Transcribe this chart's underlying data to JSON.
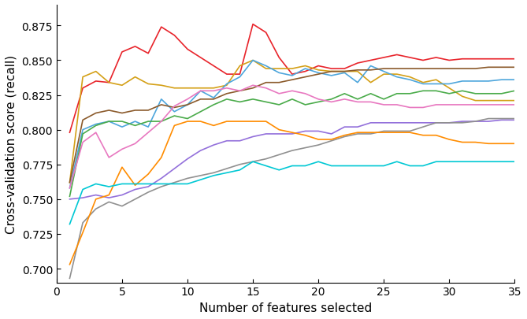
{
  "xlabel": "Number of features selected",
  "ylabel": "Cross-validation score (recall)",
  "xlim": [
    1,
    35
  ],
  "ylim": [
    0.69,
    0.89
  ],
  "yticks": [
    0.7,
    0.725,
    0.75,
    0.775,
    0.8,
    0.825,
    0.85,
    0.875
  ],
  "xticks": [
    0,
    5,
    10,
    15,
    20,
    25,
    30,
    35
  ],
  "lines": [
    {
      "color": "#e8242b",
      "values": [
        0.798,
        0.83,
        0.835,
        0.834,
        0.856,
        0.86,
        0.855,
        0.874,
        0.868,
        0.858,
        0.852,
        0.846,
        0.84,
        0.84,
        0.876,
        0.87,
        0.852,
        0.84,
        0.842,
        0.846,
        0.844,
        0.844,
        0.848,
        0.85,
        0.852,
        0.854,
        0.852,
        0.85,
        0.852,
        0.85,
        0.851,
        0.851,
        0.851,
        0.851,
        0.851
      ]
    },
    {
      "color": "#d4a017",
      "values": [
        0.762,
        0.838,
        0.842,
        0.834,
        0.832,
        0.838,
        0.833,
        0.832,
        0.83,
        0.83,
        0.83,
        0.83,
        0.832,
        0.846,
        0.85,
        0.844,
        0.844,
        0.844,
        0.846,
        0.843,
        0.842,
        0.842,
        0.842,
        0.834,
        0.84,
        0.84,
        0.838,
        0.834,
        0.836,
        0.83,
        0.824,
        0.821,
        0.821,
        0.821,
        0.821
      ]
    },
    {
      "color": "#4ea6dc",
      "values": [
        0.758,
        0.8,
        0.804,
        0.806,
        0.802,
        0.806,
        0.802,
        0.822,
        0.813,
        0.818,
        0.828,
        0.823,
        0.833,
        0.838,
        0.85,
        0.846,
        0.841,
        0.839,
        0.844,
        0.841,
        0.839,
        0.841,
        0.834,
        0.846,
        0.842,
        0.838,
        0.836,
        0.833,
        0.833,
        0.833,
        0.835,
        0.835,
        0.835,
        0.836,
        0.836
      ]
    },
    {
      "color": "#4aab4a",
      "values": [
        0.752,
        0.797,
        0.803,
        0.806,
        0.806,
        0.803,
        0.806,
        0.806,
        0.81,
        0.808,
        0.813,
        0.818,
        0.822,
        0.82,
        0.822,
        0.82,
        0.818,
        0.822,
        0.818,
        0.82,
        0.822,
        0.826,
        0.822,
        0.826,
        0.822,
        0.826,
        0.826,
        0.828,
        0.828,
        0.826,
        0.828,
        0.826,
        0.826,
        0.826,
        0.828
      ]
    },
    {
      "color": "#8b5a2b",
      "values": [
        0.762,
        0.807,
        0.812,
        0.814,
        0.812,
        0.814,
        0.814,
        0.818,
        0.816,
        0.818,
        0.822,
        0.822,
        0.826,
        0.828,
        0.83,
        0.834,
        0.834,
        0.836,
        0.838,
        0.84,
        0.842,
        0.842,
        0.843,
        0.843,
        0.844,
        0.844,
        0.844,
        0.844,
        0.844,
        0.844,
        0.844,
        0.844,
        0.845,
        0.845,
        0.845
      ]
    },
    {
      "color": "#e878c0",
      "values": [
        0.758,
        0.791,
        0.798,
        0.78,
        0.786,
        0.79,
        0.798,
        0.806,
        0.817,
        0.822,
        0.828,
        0.828,
        0.83,
        0.828,
        0.832,
        0.83,
        0.826,
        0.828,
        0.826,
        0.822,
        0.82,
        0.822,
        0.82,
        0.82,
        0.818,
        0.818,
        0.816,
        0.816,
        0.818,
        0.818,
        0.818,
        0.818,
        0.818,
        0.818,
        0.818
      ]
    },
    {
      "color": "#9370db",
      "values": [
        0.75,
        0.751,
        0.753,
        0.751,
        0.753,
        0.757,
        0.759,
        0.765,
        0.772,
        0.779,
        0.785,
        0.789,
        0.792,
        0.792,
        0.795,
        0.797,
        0.797,
        0.797,
        0.799,
        0.799,
        0.797,
        0.802,
        0.802,
        0.805,
        0.805,
        0.805,
        0.805,
        0.805,
        0.805,
        0.805,
        0.806,
        0.806,
        0.806,
        0.807,
        0.807
      ]
    },
    {
      "color": "#909090",
      "values": [
        0.693,
        0.733,
        0.743,
        0.748,
        0.745,
        0.75,
        0.755,
        0.759,
        0.762,
        0.765,
        0.767,
        0.769,
        0.772,
        0.775,
        0.777,
        0.779,
        0.782,
        0.785,
        0.787,
        0.789,
        0.792,
        0.795,
        0.797,
        0.797,
        0.799,
        0.799,
        0.799,
        0.802,
        0.805,
        0.805,
        0.805,
        0.806,
        0.808,
        0.808,
        0.808
      ]
    },
    {
      "color": "#ff8c00",
      "values": [
        0.703,
        0.726,
        0.75,
        0.753,
        0.773,
        0.76,
        0.768,
        0.78,
        0.803,
        0.806,
        0.806,
        0.803,
        0.806,
        0.806,
        0.806,
        0.806,
        0.8,
        0.798,
        0.796,
        0.793,
        0.793,
        0.796,
        0.798,
        0.798,
        0.798,
        0.798,
        0.798,
        0.796,
        0.796,
        0.793,
        0.791,
        0.791,
        0.79,
        0.79,
        0.79
      ]
    },
    {
      "color": "#00c8d4",
      "values": [
        0.732,
        0.757,
        0.761,
        0.759,
        0.761,
        0.761,
        0.761,
        0.761,
        0.761,
        0.761,
        0.764,
        0.767,
        0.769,
        0.771,
        0.777,
        0.774,
        0.771,
        0.774,
        0.774,
        0.777,
        0.774,
        0.774,
        0.774,
        0.774,
        0.774,
        0.777,
        0.774,
        0.774,
        0.777,
        0.777,
        0.777,
        0.777,
        0.777,
        0.777,
        0.777
      ]
    }
  ]
}
